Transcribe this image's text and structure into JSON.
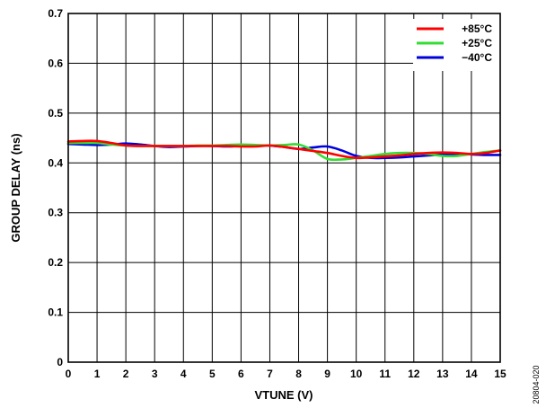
{
  "chart_data": {
    "type": "line",
    "title": "",
    "xlabel": "VTUNE (V)",
    "ylabel": "GROUP DELAY (ns)",
    "xlim": [
      0,
      15
    ],
    "ylim": [
      0,
      0.7
    ],
    "xticks": [
      "0",
      "1",
      "2",
      "3",
      "4",
      "5",
      "6",
      "7",
      "8",
      "9",
      "10",
      "11",
      "12",
      "13",
      "14",
      "15"
    ],
    "yticks": [
      "0",
      "0.1",
      "0.2",
      "0.3",
      "0.4",
      "0.5",
      "0.6",
      "0.7"
    ],
    "grid": true,
    "legend_position": "top-right",
    "series": [
      {
        "name": "+85°C",
        "color": "#ff0000",
        "x": [
          0,
          0.5,
          1,
          1.5,
          2,
          2.5,
          3,
          3.5,
          4,
          4.5,
          5,
          5.5,
          6,
          6.5,
          7,
          7.5,
          8,
          8.5,
          9,
          9.5,
          10,
          10.5,
          11,
          11.5,
          12,
          12.5,
          13,
          13.5,
          14,
          14.5,
          15
        ],
        "y": [
          0.443,
          0.444,
          0.444,
          0.44,
          0.435,
          0.434,
          0.434,
          0.434,
          0.434,
          0.434,
          0.434,
          0.434,
          0.433,
          0.433,
          0.435,
          0.432,
          0.428,
          0.424,
          0.42,
          0.414,
          0.41,
          0.411,
          0.413,
          0.415,
          0.418,
          0.42,
          0.421,
          0.42,
          0.418,
          0.42,
          0.425
        ]
      },
      {
        "name": "+25°C",
        "color": "#33dd33",
        "x": [
          0,
          0.5,
          1,
          1.5,
          2,
          2.5,
          3,
          3.5,
          4,
          4.5,
          5,
          5.5,
          6,
          6.5,
          7,
          7.5,
          8,
          8.5,
          9,
          9.5,
          10,
          10.5,
          11,
          11.5,
          12,
          12.5,
          13,
          13.5,
          14,
          14.5,
          15
        ],
        "y": [
          0.44,
          0.44,
          0.44,
          0.437,
          0.435,
          0.434,
          0.434,
          0.434,
          0.434,
          0.435,
          0.435,
          0.436,
          0.437,
          0.436,
          0.435,
          0.436,
          0.437,
          0.425,
          0.408,
          0.407,
          0.41,
          0.414,
          0.418,
          0.42,
          0.42,
          0.418,
          0.414,
          0.414,
          0.418,
          0.422,
          0.425
        ]
      },
      {
        "name": "−40°C",
        "color": "#0000dd",
        "x": [
          0,
          0.5,
          1,
          1.5,
          2,
          2.5,
          3,
          3.5,
          4,
          4.5,
          5,
          5.5,
          6,
          6.5,
          7,
          7.5,
          8,
          8.5,
          9,
          9.5,
          10,
          10.5,
          11,
          11.5,
          12,
          12.5,
          13,
          13.5,
          14,
          14.5,
          15
        ],
        "y": [
          0.438,
          0.437,
          0.436,
          0.437,
          0.439,
          0.437,
          0.434,
          0.432,
          0.433,
          0.434,
          0.434,
          0.433,
          0.434,
          0.435,
          0.435,
          0.432,
          0.428,
          0.431,
          0.433,
          0.425,
          0.414,
          0.41,
          0.41,
          0.411,
          0.413,
          0.415,
          0.417,
          0.418,
          0.417,
          0.416,
          0.416
        ]
      }
    ]
  },
  "figure_id": "20804-020"
}
